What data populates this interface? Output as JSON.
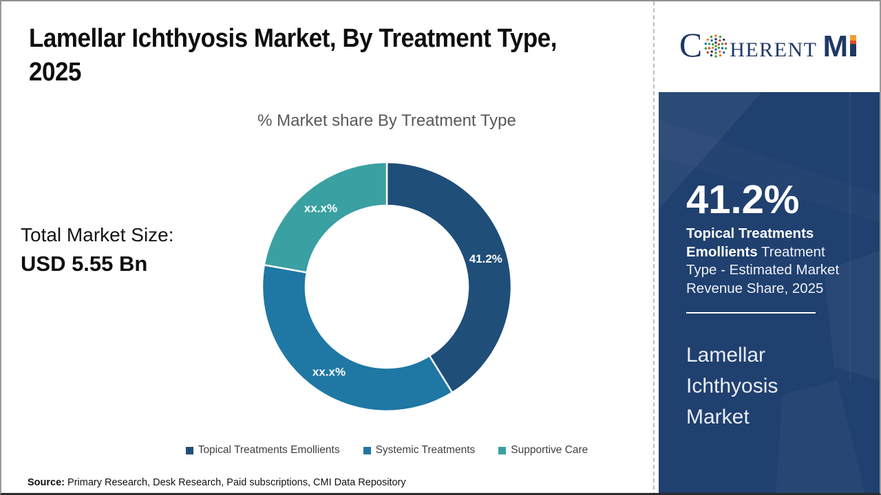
{
  "header": {
    "title_line1": "Lamellar Ichthyosis Market, By Treatment Type,",
    "title_line2": "2025",
    "subtitle": "% Market share By Treatment Type"
  },
  "total_market": {
    "label": "Total Market Size:",
    "value": "USD 5.55 Bn"
  },
  "chart_data": {
    "type": "pie",
    "subtype": "donut",
    "title": "% Market share By Treatment Type",
    "categories": [
      "Topical Treatments Emollients",
      "Systemic Treatments",
      "Supportive Care"
    ],
    "values": [
      41.2,
      36.6,
      22.2
    ],
    "display_labels": [
      "41.2%",
      "xx.x%",
      "xx.x%"
    ],
    "colors": [
      "#1F4E79",
      "#1F77A4",
      "#3AA0A2"
    ],
    "start_angle_deg": 0,
    "direction": "clockwise",
    "inner_radius_ratio": 0.65,
    "legend_position": "bottom"
  },
  "source": {
    "label": "Source:",
    "text": " Primary Research, Desk Research, Paid subscriptions, CMI Data Repository"
  },
  "logo": {
    "c": "C",
    "herent": "HERENT",
    "m": "M",
    "i": "I",
    "navy": "#1f3864",
    "orange": "#f59d31"
  },
  "right_panel": {
    "stat_value": "41.2%",
    "stat_bold": "Topical Treatments Emollients",
    "stat_rest": " Treatment Type - Estimated Market Revenue Share, 2025",
    "market_name": "Lamellar Ichthyosis Market",
    "background": "#20406f"
  }
}
